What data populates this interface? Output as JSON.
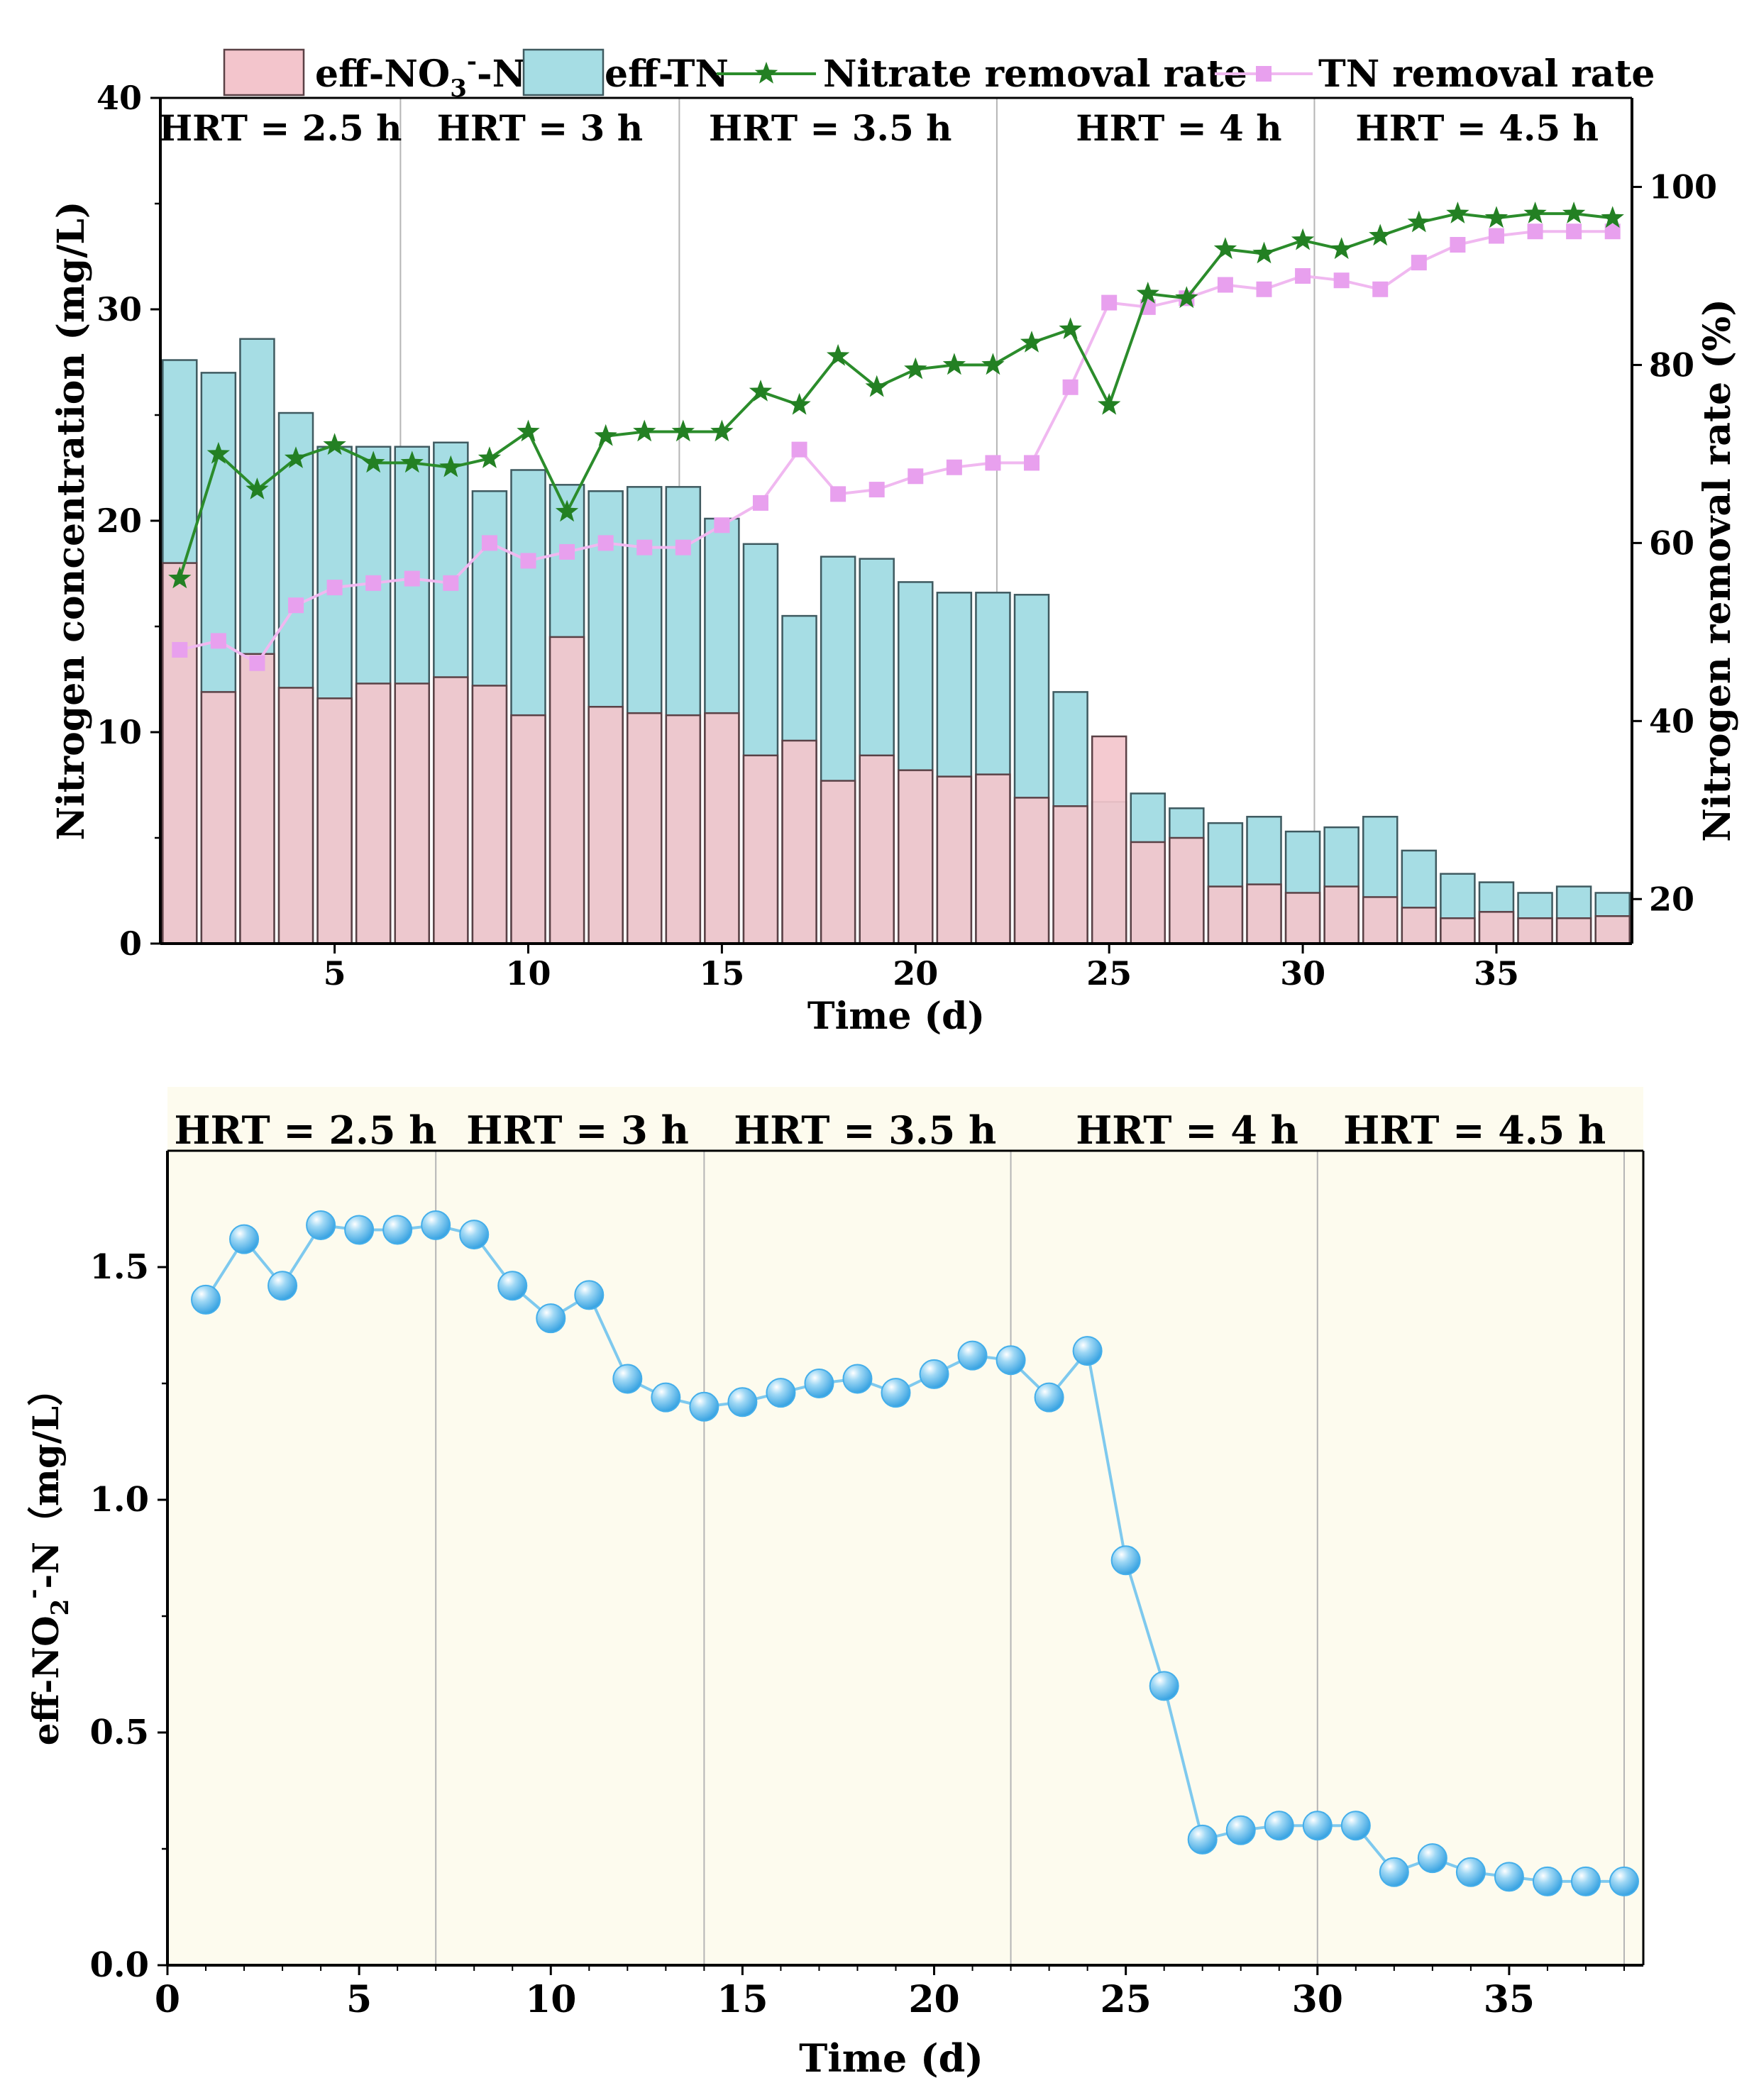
{
  "colors": {
    "no3_bar": "#f3c5cc",
    "no3_edge": "#5a4146",
    "tn_bar": "#a6dde4",
    "tn_edge": "#3f5a60",
    "nitrate_line": "#2b8c2b",
    "nitrate_marker": "#238023",
    "tn_line": "#f0b8f0",
    "tn_marker": "#e8a0ee",
    "no2_line": "#7ec9ee",
    "no2_marker": "#44aeea",
    "panel2_bg": "#fdfbee",
    "divider": "#b5b5b5"
  },
  "chart_data": [
    {
      "type": "bar",
      "xlabel": "Time (d)",
      "ylabel": "Nitrogen concentration (mg/L)",
      "y2label": "Nitrogen removal rate (%)",
      "xlim": [
        0.5,
        38.5
      ],
      "ylim": [
        0,
        40
      ],
      "y2lim": [
        15,
        110
      ],
      "x_ticks": [
        5,
        10,
        15,
        20,
        25,
        30,
        35
      ],
      "y_ticks": [
        0,
        10,
        20,
        30,
        40
      ],
      "y2_ticks": [
        20,
        40,
        60,
        80,
        100
      ],
      "grid": false,
      "legend_position": "top",
      "hrt_labels": [
        {
          "text": "HRT = 2.5 h",
          "x": 3.6
        },
        {
          "text": "HRT = 3 h",
          "x": 10.3
        },
        {
          "text": "HRT = 3.5 h",
          "x": 17.8
        },
        {
          "text": "HRT = 4 h",
          "x": 26.8
        },
        {
          "text": "HRT = 4.5 h",
          "x": 34.5
        }
      ],
      "hrt_dividers": [
        6.7,
        13.9,
        22.1,
        30.3
      ],
      "x": [
        1,
        2,
        3,
        4,
        5,
        6,
        7,
        8,
        9,
        10,
        11,
        12,
        13,
        14,
        15,
        16,
        17,
        18,
        19,
        20,
        21,
        22,
        23,
        24,
        25,
        26,
        27,
        28,
        29,
        30,
        31,
        32,
        33,
        34,
        35,
        36,
        37,
        38
      ],
      "series": [
        {
          "name": "eff-NO",
          "name_sub": "3",
          "name_sup": "-",
          "name_suffix": "-N",
          "kind": "bar",
          "values": [
            18.0,
            11.9,
            13.7,
            12.1,
            11.6,
            12.3,
            12.3,
            12.6,
            12.2,
            10.8,
            14.5,
            11.2,
            10.9,
            10.8,
            10.9,
            8.9,
            9.6,
            7.7,
            8.9,
            8.2,
            7.9,
            8.0,
            6.9,
            6.5,
            9.8,
            4.8,
            5.0,
            2.7,
            2.8,
            2.4,
            2.7,
            2.2,
            1.7,
            1.2,
            1.5,
            1.2,
            1.2,
            1.3
          ]
        },
        {
          "name": "eff-TN",
          "kind": "bar",
          "values": [
            27.6,
            27.0,
            28.6,
            25.1,
            23.5,
            23.5,
            23.5,
            23.7,
            21.4,
            22.4,
            21.7,
            21.4,
            21.6,
            21.6,
            20.1,
            18.9,
            15.5,
            18.3,
            18.2,
            17.1,
            16.6,
            16.6,
            16.5,
            11.9,
            6.7,
            7.1,
            6.4,
            5.7,
            6.0,
            5.3,
            5.5,
            6.0,
            4.4,
            3.3,
            2.9,
            2.4,
            2.7,
            2.4
          ]
        },
        {
          "name": "Nitrate removal rate",
          "kind": "line",
          "axis": "y2",
          "values": [
            56,
            70,
            66,
            69.5,
            71,
            69,
            69,
            68.5,
            69.5,
            72.5,
            63.5,
            72,
            72.5,
            72.5,
            72.5,
            77,
            75.5,
            81,
            77.5,
            79.5,
            80,
            80,
            82.5,
            84,
            75.5,
            88,
            87.5,
            93,
            92.5,
            94,
            93,
            94.5,
            96,
            97,
            96.5,
            97,
            97,
            96.5
          ]
        },
        {
          "name": "TN removal rate",
          "kind": "line",
          "axis": "y2",
          "values": [
            48,
            49,
            46.5,
            53,
            55,
            55.5,
            56,
            55.5,
            60,
            58,
            59,
            60,
            59.5,
            59.5,
            62,
            64.5,
            70.5,
            65.5,
            66,
            67.5,
            68.5,
            69,
            69,
            77.5,
            87,
            86.5,
            87.5,
            89,
            88.5,
            90,
            89.5,
            88.5,
            91.5,
            93.5,
            94.5,
            95,
            95,
            95
          ]
        }
      ]
    },
    {
      "type": "scatter",
      "xlabel": "Time (d)",
      "ylabel_main": "eff-NO",
      "ylabel_sub": "2",
      "ylabel_sup": "-",
      "ylabel_tail": "-N（mg/L）",
      "xlim": [
        0,
        38.5
      ],
      "ylim": [
        0.0,
        1.75
      ],
      "x_ticks": [
        0,
        5,
        10,
        15,
        20,
        25,
        30,
        35
      ],
      "y_ticks": [
        0.0,
        0.5,
        1.0,
        1.5
      ],
      "y_tick_labels": [
        "0.0",
        "0.5",
        "1.0",
        "1.5"
      ],
      "grid": false,
      "legend": false,
      "hrt_labels": [
        {
          "text": "HRT = 2.5 h",
          "x": 3.6
        },
        {
          "text": "HRT = 3 h",
          "x": 10.7
        },
        {
          "text": "HRT = 3.5 h",
          "x": 18.2
        },
        {
          "text": "HRT = 4 h",
          "x": 26.6
        },
        {
          "text": "HRT = 4.5 h",
          "x": 34.1
        }
      ],
      "hrt_dividers": [
        7,
        14,
        22,
        30,
        38
      ],
      "x": [
        1,
        2,
        3,
        4,
        5,
        6,
        7,
        8,
        9,
        10,
        11,
        12,
        13,
        14,
        15,
        16,
        17,
        18,
        19,
        20,
        21,
        22,
        23,
        24,
        25,
        26,
        27,
        28,
        29,
        30,
        31,
        32,
        33,
        34,
        35,
        36,
        37,
        38
      ],
      "values": [
        1.43,
        1.56,
        1.46,
        1.59,
        1.58,
        1.58,
        1.59,
        1.57,
        1.46,
        1.39,
        1.44,
        1.26,
        1.22,
        1.2,
        1.21,
        1.23,
        1.25,
        1.26,
        1.23,
        1.27,
        1.31,
        1.3,
        1.22,
        1.32,
        0.87,
        0.6,
        0.27,
        0.29,
        0.3,
        0.3,
        0.3,
        0.2,
        0.23,
        0.2,
        0.19,
        0.18,
        0.18,
        0.18
      ]
    }
  ]
}
